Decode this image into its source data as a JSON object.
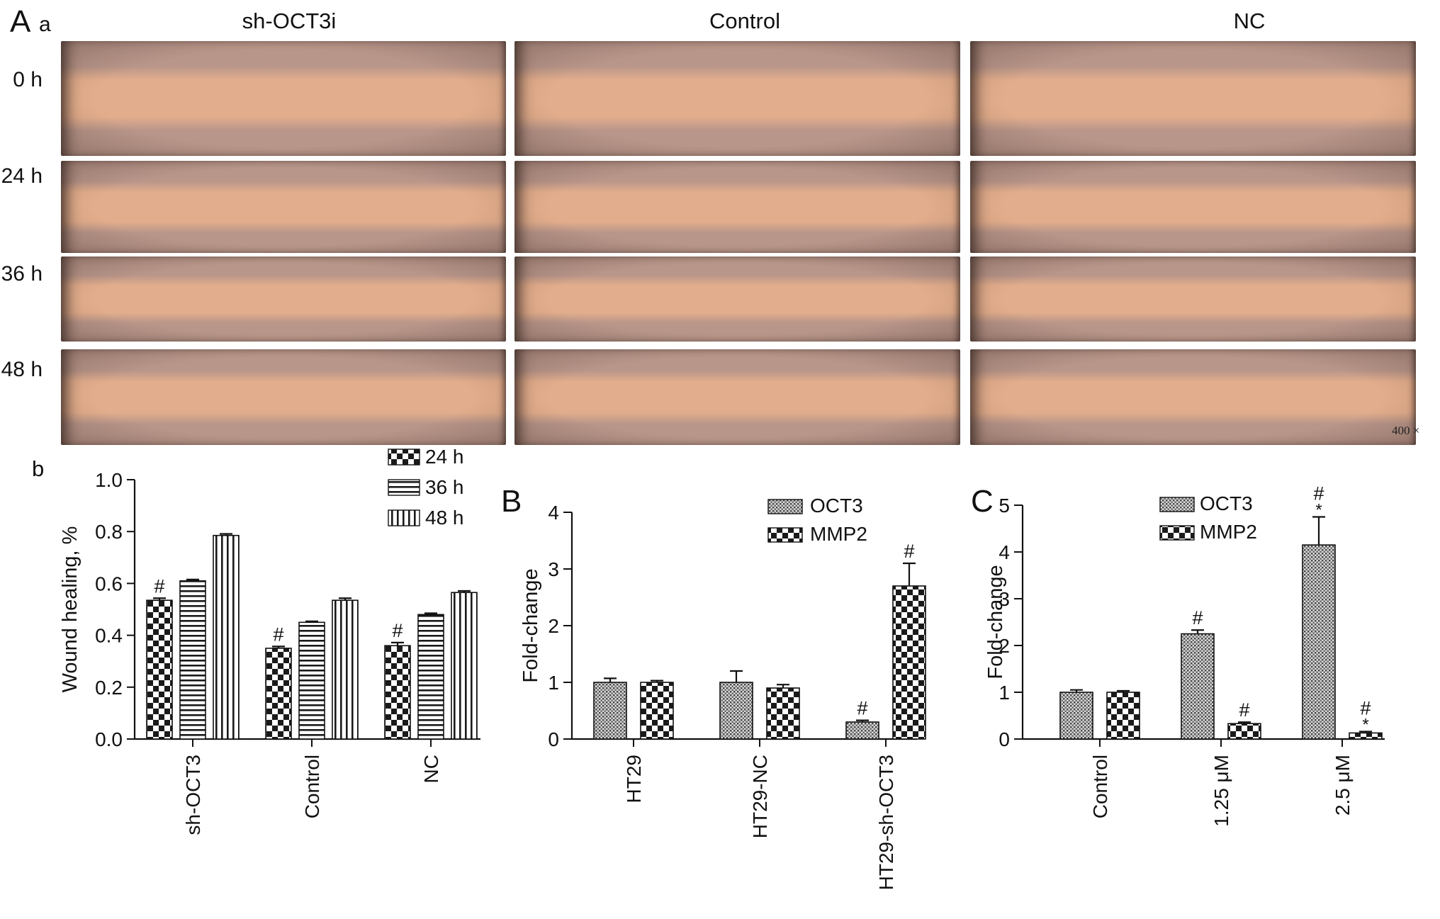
{
  "panel_A": {
    "panel_letter": "A",
    "sub_letter": "a",
    "column_titles": [
      "sh-OCT3i",
      "Control",
      "NC"
    ],
    "row_times": [
      "0 h",
      "24 h",
      "36 h",
      "48 h"
    ],
    "magnification": "400 ×",
    "colors": {
      "background": "#e2ad8c",
      "cells": "#b9968a",
      "edge": "#3c2c26"
    }
  },
  "chart_data": [
    {
      "type": "bar",
      "panel_label": "b",
      "categories": [
        "sh-OCT3",
        "Control",
        "NC"
      ],
      "series": [
        {
          "name": "24 h",
          "values": [
            0.535,
            0.35,
            0.36
          ],
          "errors": [
            0.008,
            0.007,
            0.012
          ],
          "pattern": "checker"
        },
        {
          "name": "36 h",
          "values": [
            0.61,
            0.45,
            0.48
          ],
          "errors": [
            0.005,
            0.004,
            0.005
          ],
          "pattern": "hstripe"
        },
        {
          "name": "48 h",
          "values": [
            0.785,
            0.535,
            0.565
          ],
          "errors": [
            0.006,
            0.008,
            0.006
          ],
          "pattern": "vstripe"
        }
      ],
      "annotations": [
        [
          "#",
          "#",
          "#"
        ],
        [
          "",
          "",
          ""
        ],
        [
          "",
          "",
          ""
        ]
      ],
      "ylabel": "Wound healing, %",
      "ylim": [
        0,
        1.0
      ],
      "yticks": [
        "0.0",
        "0.2",
        "0.4",
        "0.6",
        "0.8",
        "1.0"
      ],
      "legend_position": "top-right"
    },
    {
      "type": "bar",
      "panel_label": "B",
      "categories": [
        "HT29",
        "HT29-NC",
        "HT29-sh-OCT3"
      ],
      "series": [
        {
          "name": "OCT3",
          "values": [
            1.0,
            1.0,
            0.3
          ],
          "errors": [
            0.07,
            0.2,
            0.03
          ],
          "pattern": "dots"
        },
        {
          "name": "MMP2",
          "values": [
            1.0,
            0.9,
            2.7
          ],
          "errors": [
            0.03,
            0.06,
            0.4
          ],
          "pattern": "checker"
        }
      ],
      "annotations": [
        [
          "",
          "",
          "#"
        ],
        [
          "",
          "",
          "#"
        ]
      ],
      "ylabel": "Fold-change",
      "ylim": [
        0,
        4
      ],
      "yticks": [
        "0",
        "1",
        "2",
        "3",
        "4"
      ],
      "legend_position": "top-right"
    },
    {
      "type": "bar",
      "panel_label": "C",
      "categories": [
        "Control",
        "1.25 μM",
        "2.5 μM"
      ],
      "series": [
        {
          "name": "OCT3",
          "values": [
            1.0,
            2.25,
            4.15
          ],
          "errors": [
            0.05,
            0.08,
            0.6
          ],
          "pattern": "dots"
        },
        {
          "name": "MMP2",
          "values": [
            1.0,
            0.33,
            0.13
          ],
          "errors": [
            0.03,
            0.03,
            0.03
          ],
          "pattern": "checker"
        }
      ],
      "annotations": [
        [
          "",
          "#",
          "#*"
        ],
        [
          "",
          "#",
          "#*"
        ]
      ],
      "ylabel": "Fold-change",
      "ylim": [
        0,
        5
      ],
      "yticks": [
        "0",
        "1",
        "2",
        "3",
        "4",
        "5"
      ],
      "legend_position": "top-left"
    }
  ]
}
